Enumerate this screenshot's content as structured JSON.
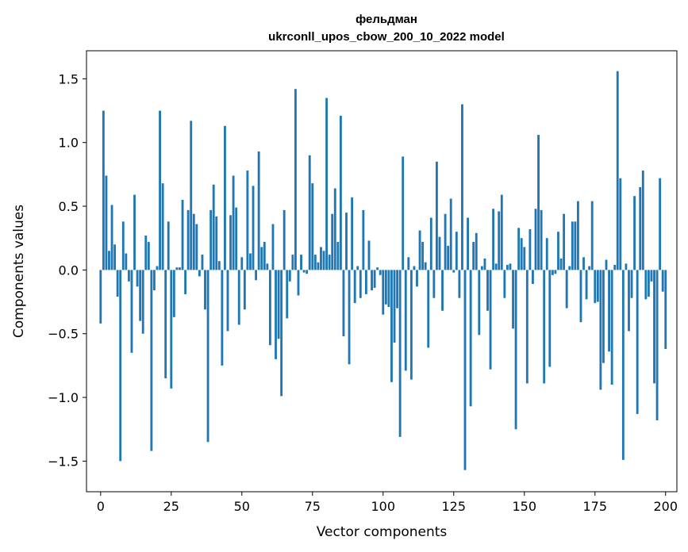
{
  "chart_data": {
    "type": "bar",
    "title_line1": "фельдман",
    "title_line2": "ukrconll_upos_cbow_200_10_2022 model",
    "xlabel": "Vector components",
    "ylabel": "Components values",
    "xlim": [
      -5,
      204
    ],
    "ylim": [
      -1.74,
      1.72
    ],
    "x_ticks": [
      0,
      25,
      50,
      75,
      100,
      125,
      150,
      175,
      200
    ],
    "y_ticks": [
      -1.5,
      -1.0,
      -0.5,
      0.0,
      0.5,
      1.0,
      1.5
    ],
    "y_tick_labels": [
      "−1.5",
      "−1.0",
      "−0.5",
      "0.0",
      "0.5",
      "1.0",
      "1.5"
    ],
    "grid": false,
    "legend": "none",
    "bar_color": "#1f77b4",
    "values": [
      -0.42,
      1.25,
      0.74,
      0.15,
      0.51,
      0.2,
      -0.21,
      -1.5,
      0.38,
      0.13,
      -0.09,
      -0.65,
      0.59,
      -0.13,
      -0.4,
      -0.5,
      0.27,
      0.22,
      -1.42,
      -0.16,
      0.03,
      1.25,
      0.68,
      -0.85,
      0.38,
      -0.93,
      -0.37,
      0.02,
      0.02,
      0.55,
      -0.19,
      0.47,
      1.17,
      0.44,
      0.36,
      -0.05,
      0.12,
      -0.31,
      -1.35,
      0.47,
      0.67,
      0.42,
      0.07,
      -0.75,
      1.13,
      -0.48,
      0.43,
      0.74,
      0.49,
      -0.43,
      0.1,
      -0.31,
      0.78,
      0.13,
      0.66,
      -0.08,
      0.93,
      0.18,
      0.22,
      0.05,
      -0.59,
      0.36,
      -0.7,
      -0.54,
      -0.99,
      0.47,
      -0.38,
      -0.09,
      0.12,
      1.42,
      -0.2,
      0.12,
      -0.02,
      -0.03,
      0.9,
      0.68,
      0.12,
      0.06,
      0.18,
      0.15,
      1.35,
      0.12,
      0.44,
      0.64,
      0.22,
      1.21,
      -0.52,
      0.45,
      -0.74,
      0.57,
      -0.26,
      0.03,
      -0.22,
      0.47,
      -0.19,
      0.23,
      -0.16,
      -0.14,
      0.02,
      -0.04,
      -0.35,
      -0.27,
      -0.29,
      -0.88,
      -0.57,
      -0.3,
      -1.31,
      0.89,
      -0.79,
      0.1,
      -0.86,
      0.03,
      -0.13,
      0.31,
      0.22,
      0.06,
      -0.61,
      0.41,
      -0.22,
      0.85,
      0.26,
      -0.32,
      0.44,
      0.19,
      0.56,
      -0.02,
      0.3,
      -0.22,
      1.3,
      -1.57,
      0.41,
      -1.07,
      0.22,
      0.29,
      -0.51,
      0.03,
      0.09,
      -0.32,
      -0.78,
      0.48,
      0.05,
      0.46,
      0.59,
      -0.22,
      0.04,
      0.05,
      -0.46,
      -1.25,
      0.33,
      0.25,
      0.18,
      -0.89,
      0.32,
      -0.11,
      0.48,
      1.06,
      0.47,
      -0.89,
      0.25,
      -0.76,
      -0.04,
      -0.03,
      0.3,
      0.09,
      0.44,
      -0.3,
      0.03,
      0.38,
      0.38,
      0.54,
      -0.41,
      0.1,
      -0.23,
      0.03,
      0.54,
      -0.26,
      -0.25,
      -0.94,
      -0.73,
      0.08,
      -0.64,
      -0.9,
      0.04,
      1.56,
      0.72,
      -1.49,
      0.05,
      -0.48,
      -0.22,
      0.58,
      -1.13,
      0.65,
      0.78,
      -0.23,
      -0.21,
      -0.09,
      -0.89,
      -1.18,
      0.72,
      -0.17,
      -0.62
    ]
  }
}
